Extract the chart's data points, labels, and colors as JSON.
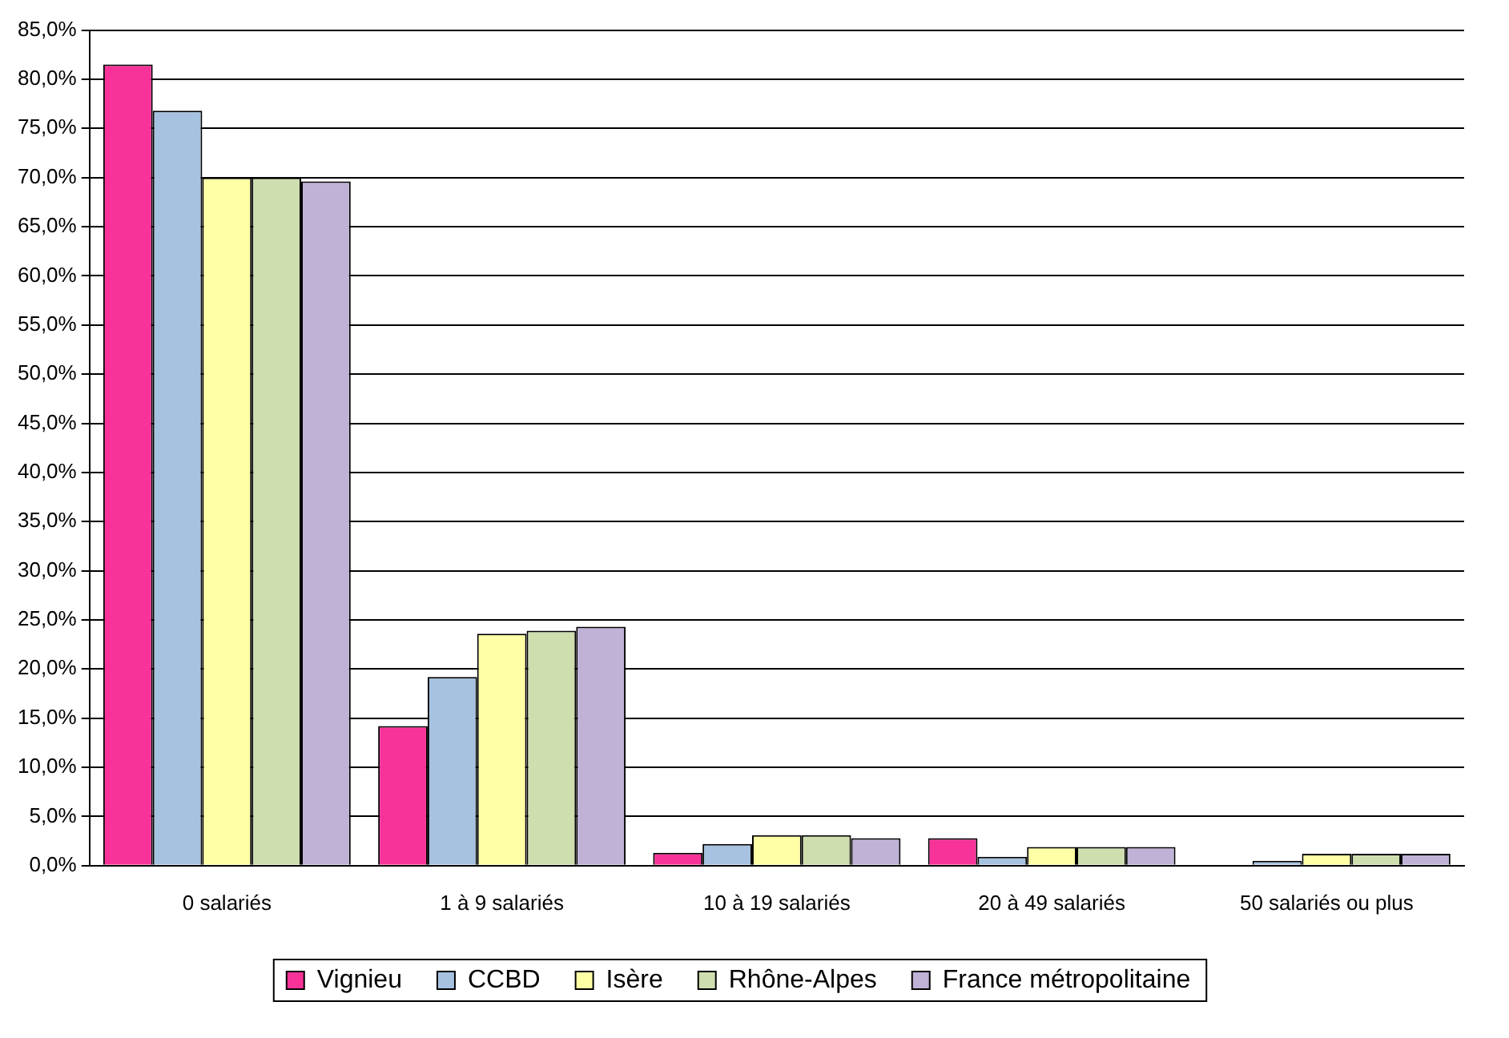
{
  "chart_data": {
    "type": "bar",
    "categories": [
      "0 salariés",
      "1 à 9 salariés",
      "10 à 19 salariés",
      "20 à 49 salariés",
      "50 salariés ou plus"
    ],
    "series": [
      {
        "name": "Vignieu",
        "color": "#f73399",
        "values": [
          81.5,
          14.2,
          1.3,
          2.8,
          0
        ]
      },
      {
        "name": "CCBD",
        "color": "#a6c2e0",
        "values": [
          76.8,
          19.2,
          2.2,
          0.9,
          0.5
        ]
      },
      {
        "name": "Isère",
        "color": "#ffffa6",
        "values": [
          70.0,
          23.6,
          3.1,
          1.9,
          1.2
        ]
      },
      {
        "name": "Rhône-Alpes",
        "color": "#cfdeae",
        "values": [
          70.0,
          23.9,
          3.1,
          1.9,
          1.2
        ]
      },
      {
        "name": "France métropolitaine",
        "color": "#c0b2d6",
        "values": [
          69.6,
          24.3,
          2.8,
          1.9,
          1.2
        ]
      }
    ],
    "ylim": [
      0,
      85
    ],
    "yticks": [
      {
        "value": 0,
        "label": "0,0%"
      },
      {
        "value": 5,
        "label": "5,0%"
      },
      {
        "value": 10,
        "label": "10,0%"
      },
      {
        "value": 15,
        "label": "15,0%"
      },
      {
        "value": 20,
        "label": "20,0%"
      },
      {
        "value": 25,
        "label": "25,0%"
      },
      {
        "value": 30,
        "label": "30,0%"
      },
      {
        "value": 35,
        "label": "35,0%"
      },
      {
        "value": 40,
        "label": "40,0%"
      },
      {
        "value": 45,
        "label": "45,0%"
      },
      {
        "value": 50,
        "label": "50,0%"
      },
      {
        "value": 55,
        "label": "55,0%"
      },
      {
        "value": 60,
        "label": "60,0%"
      },
      {
        "value": 65,
        "label": "65,0%"
      },
      {
        "value": 70,
        "label": "70,0%"
      },
      {
        "value": 75,
        "label": "75,0%"
      },
      {
        "value": 80,
        "label": "80,0%"
      },
      {
        "value": 85,
        "label": "85,0%"
      }
    ],
    "grid": "y",
    "legend": "bottom"
  }
}
